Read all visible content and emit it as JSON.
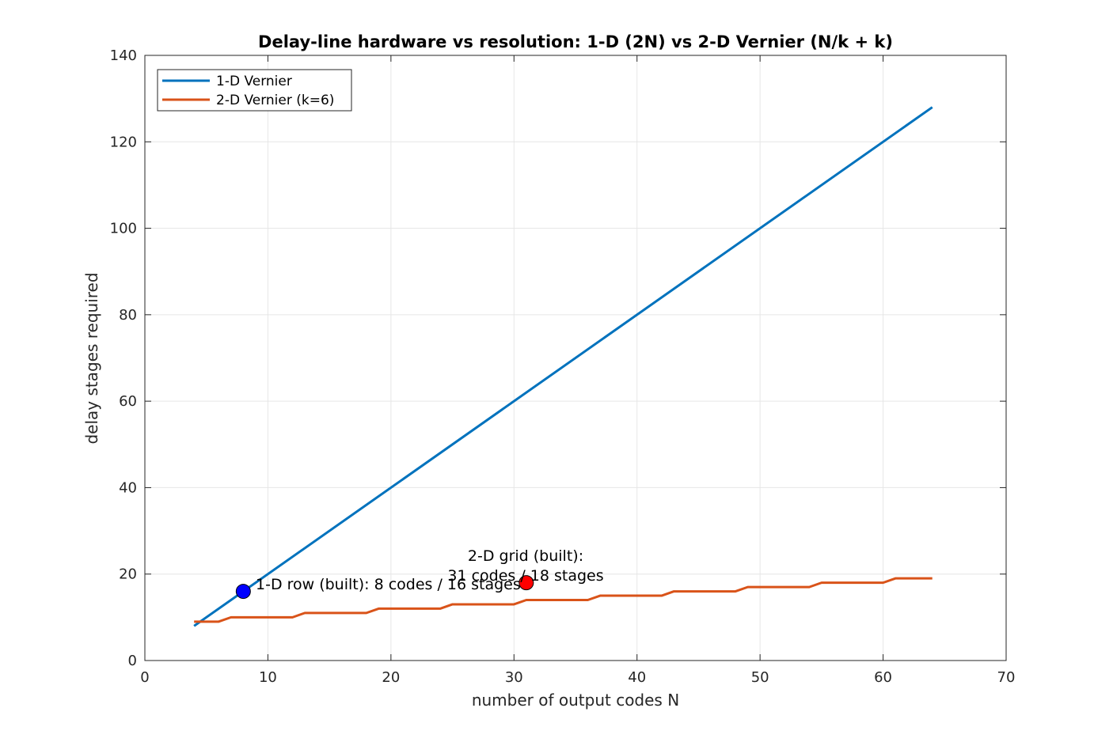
{
  "chart_data": {
    "type": "line",
    "title": "Delay-line hardware vs resolution: 1-D (2N) vs 2-D Vernier (N/k + k)",
    "xlabel": "number of output codes N",
    "ylabel": "delay stages required",
    "xlim": [
      0,
      70
    ],
    "ylim": [
      0,
      140
    ],
    "xticks": [
      0,
      10,
      20,
      30,
      40,
      50,
      60,
      70
    ],
    "yticks": [
      0,
      20,
      40,
      60,
      80,
      100,
      120,
      140
    ],
    "grid": true,
    "legend_position": "top-left",
    "series": [
      {
        "name": "1-D Vernier",
        "color": "#0072BD",
        "x": [
          4,
          64
        ],
        "y": [
          8,
          128
        ]
      },
      {
        "name": "2-D Vernier (k=6)",
        "color": "#D95319",
        "x": [
          4,
          5,
          6,
          7,
          8,
          9,
          10,
          11,
          12,
          13,
          14,
          15,
          16,
          17,
          18,
          19,
          20,
          21,
          22,
          23,
          24,
          25,
          26,
          27,
          28,
          29,
          30,
          31,
          32,
          33,
          34,
          35,
          36,
          37,
          38,
          39,
          40,
          41,
          42,
          43,
          44,
          45,
          46,
          47,
          48,
          49,
          50,
          51,
          52,
          53,
          54,
          55,
          56,
          57,
          58,
          59,
          60,
          61,
          62,
          63,
          64
        ],
        "y": [
          9,
          9,
          9,
          10,
          10,
          10,
          10,
          10,
          10,
          11,
          11,
          11,
          11,
          11,
          11,
          12,
          12,
          12,
          12,
          12,
          12,
          13,
          13,
          13,
          13,
          13,
          13,
          14,
          14,
          14,
          14,
          14,
          14,
          15,
          15,
          15,
          15,
          15,
          15,
          16,
          16,
          16,
          16,
          16,
          16,
          17,
          17,
          17,
          17,
          17,
          17,
          18,
          18,
          18,
          18,
          18,
          18,
          19,
          19,
          19,
          19
        ]
      }
    ],
    "markers": [
      {
        "x": 8,
        "y": 16,
        "color": "#0000FF",
        "label": "1-D row (built): 8 codes / 16 stages"
      },
      {
        "x": 31,
        "y": 18,
        "color": "#FF0000",
        "label_lines": [
          "2-D grid (built):",
          "31 codes / 18 stages"
        ]
      }
    ]
  }
}
